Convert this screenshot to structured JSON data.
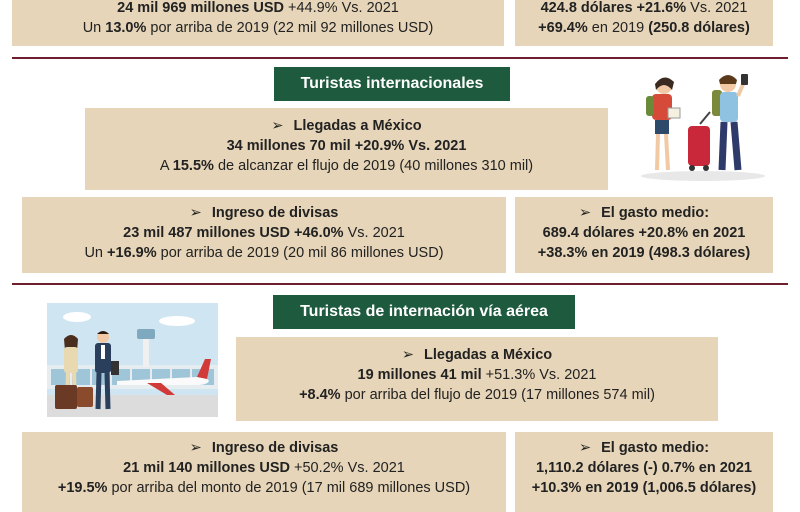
{
  "top": {
    "left": {
      "l1_bold": "24 mil 969 millones USD",
      "l1_rest": " +44.9% Vs. 2021",
      "l2_a": "Un ",
      "l2_bold": "13.0%",
      "l2_rest": " por arriba de 2019 (22 mil 92 millones USD)"
    },
    "right": {
      "l1_bold": "424.8 dólares +21.6%",
      "l1_rest": " Vs. 2021",
      "l2_bold": "+69.4%",
      "l2_mid": " en 2019 ",
      "l2_bold2": "(250.8 dólares)"
    }
  },
  "section1": {
    "title": "Turistas internacionales",
    "llegadas": {
      "arrow": "➢",
      "heading": "Llegadas a México",
      "l2_bold": "34 millones 70 mil +20.9% Vs. 2021",
      "l3_a": "A ",
      "l3_bold": "15.5%",
      "l3_rest": " de alcanzar el flujo de 2019 (40 millones 310 mil)"
    },
    "ingreso": {
      "arrow": "➢",
      "heading": "Ingreso de divisas",
      "l2_bold": "23 mil 487 millones USD +46.0%",
      "l2_rest": " Vs. 2021",
      "l3_a": "Un ",
      "l3_bold": "+16.9%",
      "l3_rest": " por arriba de 2019 (20 mil 86 millones USD)"
    },
    "gasto": {
      "arrow": "➢",
      "heading": "El gasto medio:",
      "l2_bold": "689.4 dólares +20.8% en 2021",
      "l3_bold": "+38.3% en 2019 (498.3 dólares)"
    }
  },
  "section2": {
    "title": "Turistas de internación vía aérea",
    "llegadas": {
      "arrow": "➢",
      "heading": "Llegadas a México",
      "l2_bold": "19 millones 41 mil",
      "l2_rest": " +51.3% Vs. 2021",
      "l3_bold": "+8.4%",
      "l3_rest": " por arriba del flujo de 2019 (17 millones 574 mil)"
    },
    "ingreso": {
      "arrow": "➢",
      "heading": "Ingreso de divisas",
      "l2_bold": "21 mil 140 millones USD",
      "l2_rest": " +50.2% Vs. 2021",
      "l3_bold": "+19.5%",
      "l3_rest": " por arriba del monto de 2019 (17 mil 689 millones USD)"
    },
    "gasto": {
      "arrow": "➢",
      "heading": "El gasto medio:",
      "l2_bold": "1,110.2 dólares (-) 0.7% en 2021",
      "l3_bold": "+10.3% en 2019 (1,006.5 dólares)"
    }
  },
  "colors": {
    "box": "#e6d5b8",
    "header": "#1e5a3e",
    "rule": "#6e1f2e"
  }
}
